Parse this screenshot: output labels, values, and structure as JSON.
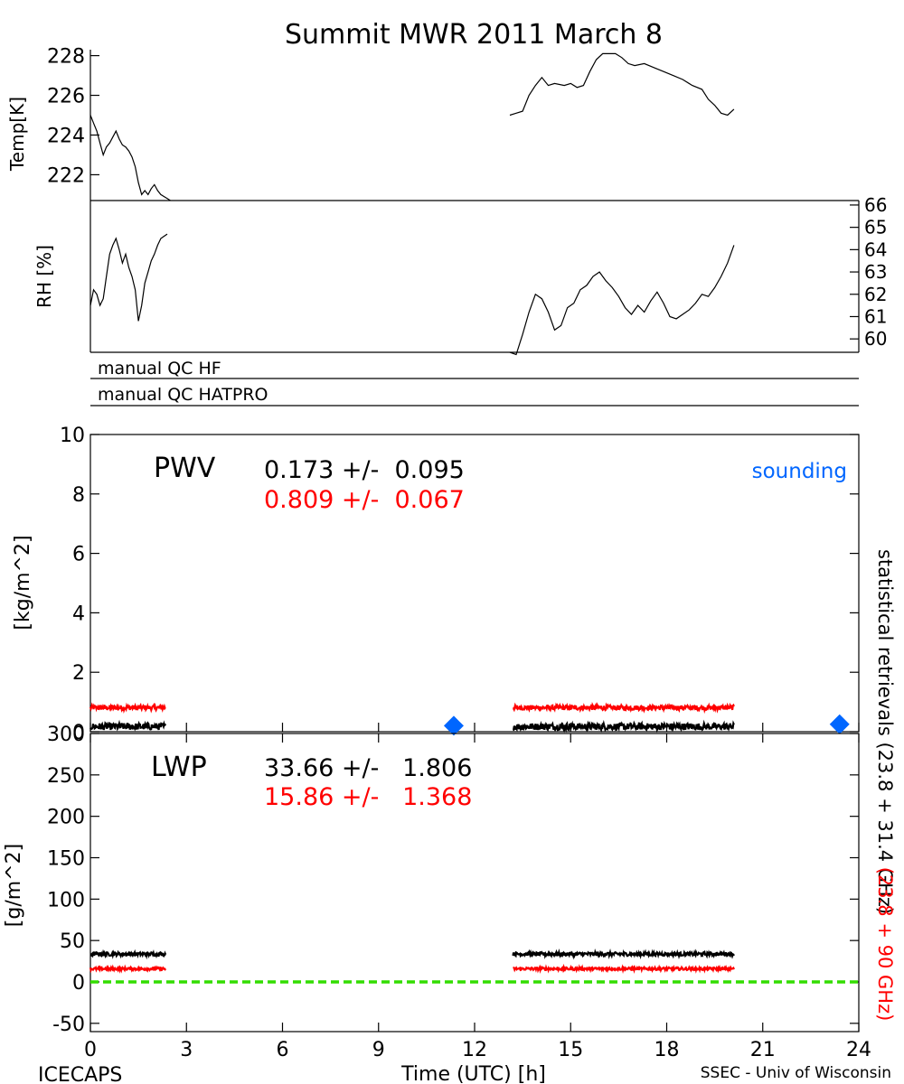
{
  "page": {
    "title": "Summit MWR 2011 March  8",
    "footer_left": "ICECAPS",
    "footer_right": "SSEC - Univ of Wisconsin"
  },
  "colors": {
    "black": "#000000",
    "red": "#ff0000",
    "blue": "#0066ff",
    "green": "#33dd00",
    "qc_gray": "#888888"
  },
  "chart_data": [
    {
      "id": "temp",
      "type": "line",
      "ylabel": "Temp[K]",
      "ylim": [
        220.7,
        228.3
      ],
      "yticks": [
        222,
        224,
        226,
        228
      ],
      "series": [
        {
          "color": "black",
          "segments": [
            [
              [
                0.0,
                225.0
              ],
              [
                0.1,
                224.6
              ],
              [
                0.2,
                224.2
              ],
              [
                0.3,
                223.6
              ],
              [
                0.4,
                223.0
              ],
              [
                0.5,
                223.4
              ],
              [
                0.6,
                223.6
              ],
              [
                0.7,
                223.9
              ],
              [
                0.8,
                224.2
              ],
              [
                0.9,
                223.8
              ],
              [
                1.0,
                223.5
              ],
              [
                1.1,
                223.4
              ],
              [
                1.2,
                223.2
              ],
              [
                1.3,
                222.9
              ],
              [
                1.4,
                222.4
              ],
              [
                1.5,
                221.6
              ],
              [
                1.6,
                221.0
              ],
              [
                1.7,
                221.2
              ],
              [
                1.8,
                221.0
              ],
              [
                1.9,
                221.3
              ],
              [
                2.0,
                221.5
              ],
              [
                2.1,
                221.2
              ],
              [
                2.2,
                221.0
              ],
              [
                2.3,
                220.9
              ],
              [
                2.4,
                220.8
              ],
              [
                2.5,
                220.7
              ]
            ],
            [
              [
                13.1,
                225.0
              ],
              [
                13.3,
                225.1
              ],
              [
                13.5,
                225.2
              ],
              [
                13.7,
                226.0
              ],
              [
                13.9,
                226.5
              ],
              [
                14.1,
                226.9
              ],
              [
                14.3,
                226.5
              ],
              [
                14.5,
                226.6
              ],
              [
                14.8,
                226.5
              ],
              [
                15.0,
                226.6
              ],
              [
                15.2,
                226.4
              ],
              [
                15.4,
                226.5
              ],
              [
                15.6,
                227.2
              ],
              [
                15.8,
                227.8
              ],
              [
                16.0,
                228.1
              ],
              [
                16.2,
                228.1
              ],
              [
                16.4,
                228.1
              ],
              [
                16.6,
                227.9
              ],
              [
                16.8,
                227.6
              ],
              [
                17.0,
                227.5
              ],
              [
                17.3,
                227.6
              ],
              [
                17.6,
                227.4
              ],
              [
                17.9,
                227.2
              ],
              [
                18.2,
                227.0
              ],
              [
                18.5,
                226.8
              ],
              [
                18.8,
                226.5
              ],
              [
                19.1,
                226.3
              ],
              [
                19.3,
                225.8
              ],
              [
                19.5,
                225.5
              ],
              [
                19.7,
                225.1
              ],
              [
                19.9,
                225.0
              ],
              [
                20.1,
                225.3
              ]
            ]
          ]
        }
      ]
    },
    {
      "id": "rh",
      "type": "line",
      "ylabel": "RH [%]",
      "ylim": [
        59.4,
        66.2
      ],
      "yticks": [
        60,
        61,
        62,
        63,
        64,
        65,
        66
      ],
      "series": [
        {
          "color": "black",
          "segments": [
            [
              [
                0.0,
                61.5
              ],
              [
                0.1,
                62.2
              ],
              [
                0.2,
                62.0
              ],
              [
                0.3,
                61.5
              ],
              [
                0.4,
                61.8
              ],
              [
                0.5,
                62.8
              ],
              [
                0.6,
                63.8
              ],
              [
                0.7,
                64.2
              ],
              [
                0.8,
                64.5
              ],
              [
                0.9,
                64.0
              ],
              [
                1.0,
                63.4
              ],
              [
                1.1,
                63.8
              ],
              [
                1.2,
                63.2
              ],
              [
                1.3,
                62.8
              ],
              [
                1.4,
                62.2
              ],
              [
                1.5,
                60.8
              ],
              [
                1.6,
                61.5
              ],
              [
                1.7,
                62.5
              ],
              [
                1.8,
                63.0
              ],
              [
                1.9,
                63.5
              ],
              [
                2.0,
                63.8
              ],
              [
                2.1,
                64.2
              ],
              [
                2.2,
                64.5
              ],
              [
                2.3,
                64.6
              ],
              [
                2.4,
                64.7
              ]
            ],
            [
              [
                13.1,
                59.4
              ],
              [
                13.3,
                59.3
              ],
              [
                13.5,
                60.2
              ],
              [
                13.7,
                61.2
              ],
              [
                13.9,
                62.0
              ],
              [
                14.1,
                61.8
              ],
              [
                14.3,
                61.2
              ],
              [
                14.5,
                60.4
              ],
              [
                14.7,
                60.6
              ],
              [
                14.9,
                61.4
              ],
              [
                15.1,
                61.6
              ],
              [
                15.3,
                62.2
              ],
              [
                15.5,
                62.4
              ],
              [
                15.7,
                62.8
              ],
              [
                15.9,
                63.0
              ],
              [
                16.1,
                62.6
              ],
              [
                16.3,
                62.3
              ],
              [
                16.5,
                61.9
              ],
              [
                16.7,
                61.4
              ],
              [
                16.9,
                61.1
              ],
              [
                17.1,
                61.5
              ],
              [
                17.3,
                61.2
              ],
              [
                17.5,
                61.7
              ],
              [
                17.7,
                62.1
              ],
              [
                17.9,
                61.6
              ],
              [
                18.1,
                61.0
              ],
              [
                18.3,
                60.9
              ],
              [
                18.5,
                61.1
              ],
              [
                18.7,
                61.3
              ],
              [
                18.9,
                61.6
              ],
              [
                19.1,
                62.0
              ],
              [
                19.3,
                61.9
              ],
              [
                19.5,
                62.3
              ],
              [
                19.7,
                62.8
              ],
              [
                19.9,
                63.4
              ],
              [
                20.1,
                64.2
              ]
            ]
          ]
        }
      ]
    },
    {
      "id": "pwv",
      "type": "line",
      "ylabel": "[kg/m^2]",
      "panel_label": "PWV",
      "ylim": [
        0,
        10
      ],
      "yticks": [
        0,
        2,
        4,
        6,
        8,
        10
      ],
      "stats": [
        {
          "text": "0.173 +/-  0.095",
          "color": "black"
        },
        {
          "text": "0.809 +/-  0.067",
          "color": "red"
        }
      ],
      "legend": {
        "label": "sounding",
        "color": "blue",
        "position": "top-right"
      },
      "series": [
        {
          "color": "red",
          "mean": 0.809,
          "noise": 0.067,
          "segments": [
            [
              0.0,
              2.35
            ],
            [
              13.2,
              20.1
            ]
          ]
        },
        {
          "color": "black",
          "mean": 0.173,
          "noise": 0.095,
          "segments": [
            [
              0.0,
              2.35
            ],
            [
              13.2,
              20.1
            ]
          ]
        }
      ],
      "soundings": [
        [
          11.35,
          0.2
        ],
        [
          23.4,
          0.25
        ]
      ]
    },
    {
      "id": "lwp",
      "type": "line",
      "xlabel": "Time (UTC) [h]",
      "ylabel": "[g/m^2]",
      "panel_label": "LWP",
      "xlim": [
        0,
        24
      ],
      "xticks": [
        0,
        3,
        6,
        9,
        12,
        15,
        18,
        21,
        24
      ],
      "ylim": [
        -60,
        300
      ],
      "yticks": [
        -50,
        0,
        50,
        100,
        150,
        200,
        250,
        300
      ],
      "stats": [
        {
          "text": "33.66 +/-   1.806",
          "color": "black"
        },
        {
          "text": "15.86 +/-   1.368",
          "color": "red"
        }
      ],
      "series": [
        {
          "color": "black",
          "mean": 33.66,
          "noise": 1.806,
          "segments": [
            [
              0.0,
              2.35
            ],
            [
              13.2,
              20.1
            ]
          ]
        },
        {
          "color": "red",
          "mean": 15.86,
          "noise": 1.368,
          "segments": [
            [
              0.0,
              2.35
            ],
            [
              13.2,
              20.1
            ]
          ]
        }
      ],
      "reference_line": {
        "y": 0,
        "color": "green"
      }
    }
  ],
  "qc": [
    {
      "label": "manual QC HF"
    },
    {
      "label": "manual QC HATPRO"
    }
  ],
  "side_labels": {
    "black": "statistical retrievals (23.8 + 31.4 GHz)",
    "red": "(23.8 + 90 GHz)"
  }
}
